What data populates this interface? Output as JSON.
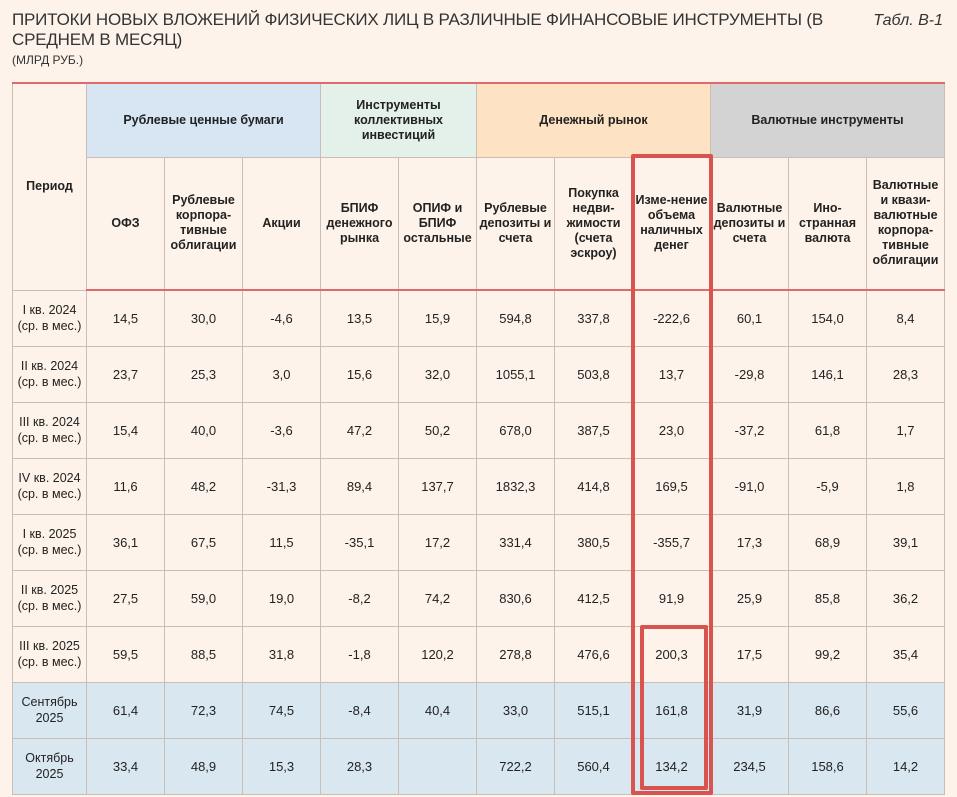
{
  "header": {
    "title": "ПРИТОКИ НОВЫХ ВЛОЖЕНИЙ ФИЗИЧЕСКИХ ЛИЦ В РАЗЛИЧНЫЕ ФИНАНСОВЫЕ ИНСТРУМЕНТЫ (В СРЕДНЕМ В МЕСЯЦ)",
    "units": "(МЛРД РУБ.)",
    "table_id": "Табл. В-1"
  },
  "table": {
    "period_header": "Период",
    "groups": {
      "ruble": "Рублевые ценные бумаги",
      "collective": "Инструменты коллективных инвестиций",
      "money": "Денежный рынок",
      "fx": "Валютные инструменты"
    },
    "columns": [
      "ОФЗ",
      "Рублевые корпора-тивные облигации",
      "Акции",
      "БПИФ денежного рынка",
      "ОПИФ и БПИФ остальные",
      "Рублевые депозиты и счета",
      "Покупка недви-жимости (счета эскроу)",
      "Изме-нение объема наличных денег",
      "Валютные депозиты и счета",
      "Ино-странная валюта",
      "Валютные и квази-валютные корпора-тивные облигации"
    ],
    "rows": [
      {
        "period": "I кв. 2024 (ср. в мес.)",
        "values": [
          "14,5",
          "30,0",
          "-4,6",
          "13,5",
          "15,9",
          "594,8",
          "337,8",
          "-222,6",
          "60,1",
          "154,0",
          "8,4"
        ]
      },
      {
        "period": "II кв. 2024 (ср. в мес.)",
        "values": [
          "23,7",
          "25,3",
          "3,0",
          "15,6",
          "32,0",
          "1055,1",
          "503,8",
          "13,7",
          "-29,8",
          "146,1",
          "28,3"
        ]
      },
      {
        "period": "III кв. 2024 (ср. в мес.)",
        "values": [
          "15,4",
          "40,0",
          "-3,6",
          "47,2",
          "50,2",
          "678,0",
          "387,5",
          "23,0",
          "-37,2",
          "61,8",
          "1,7"
        ]
      },
      {
        "period": "IV кв. 2024 (ср. в мес.)",
        "values": [
          "11,6",
          "48,2",
          "-31,3",
          "89,4",
          "137,7",
          "1832,3",
          "414,8",
          "169,5",
          "-91,0",
          "-5,9",
          "1,8"
        ]
      },
      {
        "period": "I кв. 2025 (ср. в мес.)",
        "values": [
          "36,1",
          "67,5",
          "11,5",
          "-35,1",
          "17,2",
          "331,4",
          "380,5",
          "-355,7",
          "17,3",
          "68,9",
          "39,1"
        ]
      },
      {
        "period": "II кв. 2025 (ср. в мес.)",
        "values": [
          "27,5",
          "59,0",
          "19,0",
          "-8,2",
          "74,2",
          "830,6",
          "412,5",
          "91,9",
          "25,9",
          "85,8",
          "36,2"
        ]
      },
      {
        "period": "III кв. 2025 (ср. в мес.)",
        "values": [
          "59,5",
          "88,5",
          "31,8",
          "-1,8",
          "120,2",
          "278,8",
          "476,6",
          "200,3",
          "17,5",
          "99,2",
          "35,4"
        ]
      },
      {
        "period": "Сентябрь 2025",
        "values": [
          "61,4",
          "72,3",
          "74,5",
          "-8,4",
          "40,4",
          "33,0",
          "515,1",
          "161,8",
          "31,9",
          "86,6",
          "55,6"
        ]
      },
      {
        "period": "Октябрь 2025",
        "values": [
          "33,4",
          "48,9",
          "15,3",
          "28,3",
          "",
          "722,2",
          "560,4",
          "134,2",
          "234,5",
          "158,6",
          "14,2"
        ]
      }
    ]
  },
  "colors": {
    "background": "#fdf3ea",
    "ruble_group": "#d7e6f2",
    "collective_group": "#e3f1ea",
    "money_group": "#fde2c4",
    "fx_group": "#d3d3d3",
    "month_rows": "#d9e7f1",
    "highlight": "#d9534f",
    "rule": "#e06a6a"
  }
}
